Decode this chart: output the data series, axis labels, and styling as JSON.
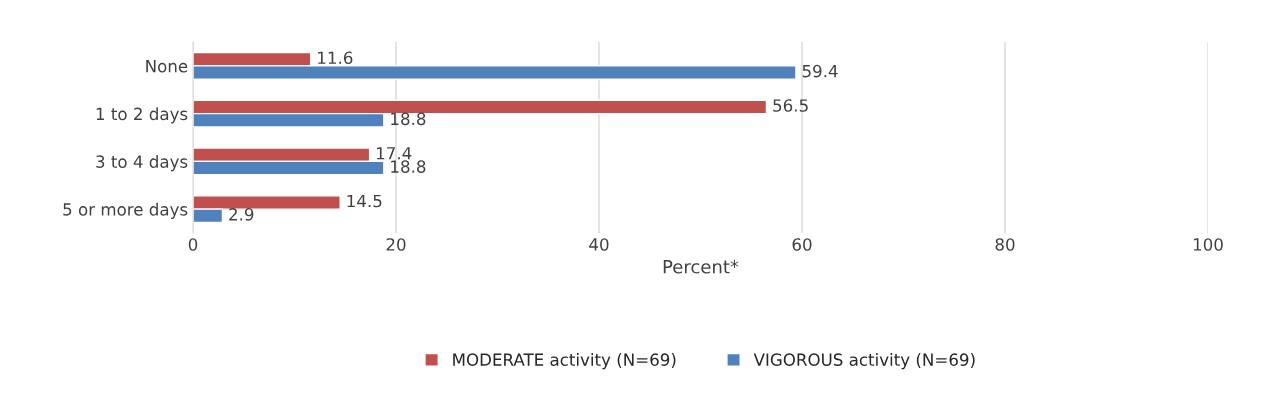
{
  "chart_data": {
    "type": "bar",
    "orientation": "horizontal",
    "xlabel": "Percent*",
    "categories": [
      "None",
      "1 to 2 days",
      "3 to 4 days",
      "5 or more days"
    ],
    "series": [
      {
        "name": "MODERATE activity (N=69)",
        "color": "#c0504d",
        "values": [
          11.6,
          56.5,
          17.4,
          14.5
        ]
      },
      {
        "name": "VIGOROUS activity (N=69)",
        "color": "#4f81bd",
        "values": [
          59.4,
          18.8,
          18.8,
          2.9
        ]
      }
    ],
    "xlim": [
      0,
      100
    ],
    "xticks": [
      0,
      20,
      40,
      60,
      80,
      100
    ],
    "grid": "x",
    "legend": "bottom",
    "data_labels": true
  }
}
